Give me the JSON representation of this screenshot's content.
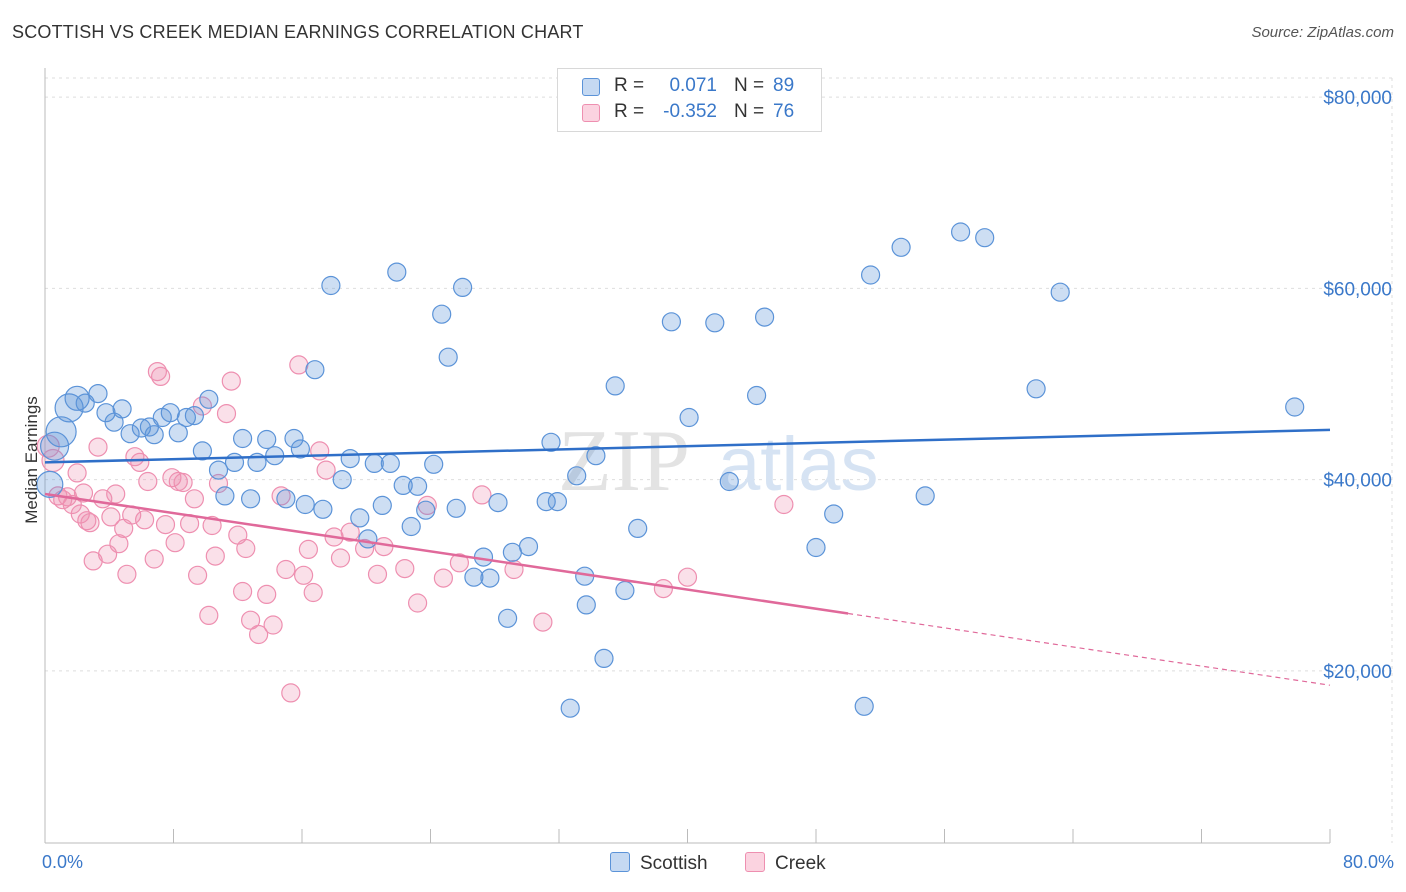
{
  "title": "SCOTTISH VS CREEK MEDIAN EARNINGS CORRELATION CHART",
  "source": "Source: ZipAtlas.com",
  "legend": [
    {
      "r_label": "R =",
      "r_value": "0.071",
      "n_label": "N =",
      "n_value": "89"
    },
    {
      "r_label": "R =",
      "r_value": "-0.352",
      "n_label": "N =",
      "n_value": "76"
    }
  ],
  "colors": {
    "scottish": "#5b93d8",
    "scottish_line": "#2f6fc8",
    "creek": "#ee8fb0",
    "creek_line": "#e0699a",
    "axis_text": "#3a78c9"
  },
  "chart_data": {
    "type": "scatter",
    "xlabel": "",
    "ylabel": "Median Earnings",
    "xlim": [
      0,
      80
    ],
    "ylim": [
      2000,
      82000
    ],
    "x_tick_labels": [
      "0.0%",
      "80.0%"
    ],
    "y_ticks": [
      20000,
      40000,
      60000,
      80000
    ],
    "y_tick_labels": [
      "$20,000",
      "$40,000",
      "$60,000",
      "$80,000"
    ],
    "grid": true,
    "legend_position": "top-center",
    "series": [
      {
        "name": "Scottish",
        "trend": {
          "x": [
            0,
            80
          ],
          "y": [
            41800,
            45200
          ]
        },
        "points": [
          [
            0.3,
            39500
          ],
          [
            0.6,
            43500
          ],
          [
            1.0,
            45000
          ],
          [
            1.5,
            47500
          ],
          [
            2.0,
            48500
          ],
          [
            2.5,
            48000
          ],
          [
            3.3,
            49000
          ],
          [
            3.8,
            47000
          ],
          [
            4.3,
            46000
          ],
          [
            4.8,
            47400
          ],
          [
            5.3,
            44800
          ],
          [
            6.0,
            45400
          ],
          [
            6.5,
            45500
          ],
          [
            6.8,
            44700
          ],
          [
            7.3,
            46500
          ],
          [
            7.8,
            47000
          ],
          [
            8.3,
            44900
          ],
          [
            8.8,
            46500
          ],
          [
            9.3,
            46700
          ],
          [
            9.8,
            43000
          ],
          [
            10.2,
            48400
          ],
          [
            10.8,
            41000
          ],
          [
            11.2,
            38300
          ],
          [
            11.8,
            41800
          ],
          [
            12.3,
            44300
          ],
          [
            12.8,
            38000
          ],
          [
            13.2,
            41800
          ],
          [
            13.8,
            44200
          ],
          [
            14.3,
            42500
          ],
          [
            15.0,
            38000
          ],
          [
            15.5,
            44300
          ],
          [
            15.9,
            43200
          ],
          [
            16.2,
            37400
          ],
          [
            16.8,
            51500
          ],
          [
            17.3,
            36900
          ],
          [
            17.8,
            60300
          ],
          [
            18.5,
            40000
          ],
          [
            19.0,
            42200
          ],
          [
            19.6,
            36000
          ],
          [
            20.1,
            33800
          ],
          [
            20.5,
            41700
          ],
          [
            21.0,
            37300
          ],
          [
            21.5,
            41700
          ],
          [
            21.9,
            61700
          ],
          [
            22.3,
            39400
          ],
          [
            22.8,
            35100
          ],
          [
            23.2,
            39300
          ],
          [
            23.7,
            36800
          ],
          [
            24.2,
            41600
          ],
          [
            24.7,
            57300
          ],
          [
            25.1,
            52800
          ],
          [
            25.6,
            37000
          ],
          [
            26.0,
            60100
          ],
          [
            26.7,
            29800
          ],
          [
            27.3,
            31900
          ],
          [
            27.7,
            29700
          ],
          [
            28.2,
            37600
          ],
          [
            28.8,
            25500
          ],
          [
            29.1,
            32400
          ],
          [
            30.1,
            33000
          ],
          [
            31.2,
            37700
          ],
          [
            31.5,
            43900
          ],
          [
            31.9,
            37700
          ],
          [
            32.7,
            16100
          ],
          [
            33.1,
            40400
          ],
          [
            33.6,
            29900
          ],
          [
            33.7,
            26900
          ],
          [
            34.3,
            42500
          ],
          [
            34.8,
            21300
          ],
          [
            35.5,
            49800
          ],
          [
            36.1,
            28400
          ],
          [
            36.9,
            34900
          ],
          [
            39.0,
            56500
          ],
          [
            40.1,
            46500
          ],
          [
            41.7,
            56400
          ],
          [
            42.6,
            39800
          ],
          [
            44.3,
            48800
          ],
          [
            44.8,
            57000
          ],
          [
            48.0,
            32900
          ],
          [
            49.1,
            36400
          ],
          [
            51.0,
            16300
          ],
          [
            51.4,
            61400
          ],
          [
            53.3,
            64300
          ],
          [
            54.8,
            38300
          ],
          [
            57.0,
            65900
          ],
          [
            58.5,
            65300
          ],
          [
            61.7,
            49500
          ],
          [
            63.2,
            59600
          ],
          [
            77.8,
            47600
          ]
        ]
      },
      {
        "name": "Creek",
        "trend": {
          "x": [
            0,
            50
          ],
          "y": [
            38500,
            26000
          ]
        },
        "trend_dashed": {
          "x": [
            50,
            80
          ],
          "y": [
            26000,
            18500
          ]
        },
        "points": [
          [
            0.2,
            43500
          ],
          [
            0.5,
            42000
          ],
          [
            0.8,
            38300
          ],
          [
            1.1,
            37900
          ],
          [
            1.4,
            38200
          ],
          [
            1.7,
            37400
          ],
          [
            2.0,
            40700
          ],
          [
            2.2,
            36400
          ],
          [
            2.4,
            38600
          ],
          [
            2.6,
            35700
          ],
          [
            2.8,
            35500
          ],
          [
            3.0,
            31500
          ],
          [
            3.3,
            43400
          ],
          [
            3.6,
            38000
          ],
          [
            3.9,
            32200
          ],
          [
            4.1,
            36100
          ],
          [
            4.4,
            38500
          ],
          [
            4.6,
            33300
          ],
          [
            4.9,
            34900
          ],
          [
            5.1,
            30100
          ],
          [
            5.4,
            36300
          ],
          [
            5.6,
            42400
          ],
          [
            5.9,
            41800
          ],
          [
            6.2,
            35800
          ],
          [
            6.4,
            39800
          ],
          [
            6.8,
            31700
          ],
          [
            7.0,
            51300
          ],
          [
            7.2,
            50800
          ],
          [
            7.5,
            35300
          ],
          [
            7.9,
            40200
          ],
          [
            8.1,
            33400
          ],
          [
            8.3,
            39800
          ],
          [
            8.6,
            39700
          ],
          [
            9.0,
            35400
          ],
          [
            9.3,
            38000
          ],
          [
            9.5,
            30000
          ],
          [
            9.8,
            47700
          ],
          [
            10.2,
            25800
          ],
          [
            10.4,
            35200
          ],
          [
            10.6,
            32000
          ],
          [
            10.8,
            39600
          ],
          [
            11.3,
            46900
          ],
          [
            11.6,
            50300
          ],
          [
            12.0,
            34200
          ],
          [
            12.3,
            28300
          ],
          [
            12.5,
            32800
          ],
          [
            12.8,
            25300
          ],
          [
            13.3,
            23800
          ],
          [
            13.8,
            28000
          ],
          [
            14.2,
            24800
          ],
          [
            14.7,
            38300
          ],
          [
            15.0,
            30600
          ],
          [
            15.3,
            17700
          ],
          [
            15.8,
            52000
          ],
          [
            16.1,
            30000
          ],
          [
            16.4,
            32700
          ],
          [
            16.7,
            28200
          ],
          [
            17.1,
            43000
          ],
          [
            17.5,
            41000
          ],
          [
            18.0,
            34000
          ],
          [
            18.4,
            31800
          ],
          [
            19.0,
            34500
          ],
          [
            19.9,
            32800
          ],
          [
            20.7,
            30100
          ],
          [
            21.1,
            33000
          ],
          [
            22.4,
            30700
          ],
          [
            23.2,
            27100
          ],
          [
            23.8,
            37300
          ],
          [
            24.8,
            29700
          ],
          [
            25.8,
            31300
          ],
          [
            27.2,
            38400
          ],
          [
            29.2,
            30600
          ],
          [
            31.0,
            25100
          ],
          [
            38.5,
            28600
          ],
          [
            40.0,
            29800
          ],
          [
            46.0,
            37400
          ]
        ]
      }
    ]
  },
  "bottom_legend": [
    "Scottish",
    "Creek"
  ],
  "watermark": {
    "zip": "ZIP",
    "atlas": "atlas"
  }
}
